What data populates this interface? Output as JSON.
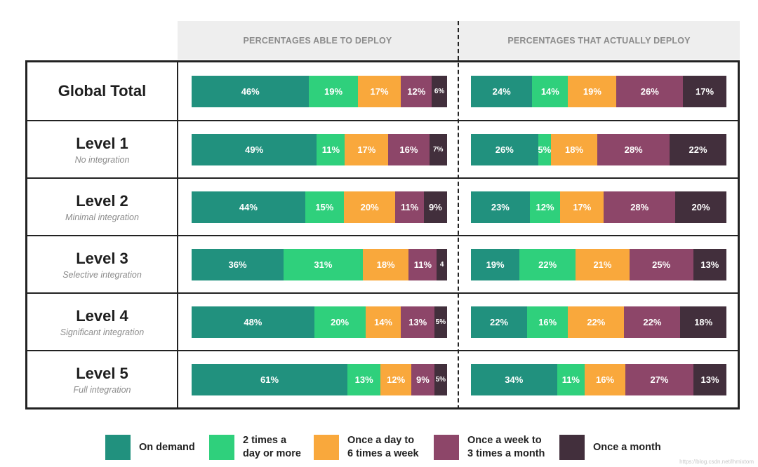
{
  "headers": {
    "left": "PERCENTAGES ABLE TO DEPLOY",
    "right": "PERCENTAGES THAT ACTUALLY DEPLOY"
  },
  "colors": {
    "on_demand": "#21917e",
    "two_times_day": "#2fd07c",
    "once_day": "#f9a83c",
    "once_week": "#8d4669",
    "once_month": "#422f3c"
  },
  "chart_data": {
    "type": "bar",
    "orientation": "horizontal",
    "stacked": true,
    "categories": [
      "Global Total",
      "Level 1",
      "Level 2",
      "Level 3",
      "Level 4",
      "Level 5"
    ],
    "subtitles": [
      "",
      "No integration",
      "Minimal integration",
      "Selective integration",
      "Significant integration",
      "Full integration"
    ],
    "series_names": [
      "On demand",
      "2 times a day or more",
      "Once a day to 6 times a week",
      "Once a week to 3 times a month",
      "Once a month"
    ],
    "panels": [
      {
        "title": "PERCENTAGES ABLE TO DEPLOY",
        "values": [
          [
            46,
            19,
            17,
            12,
            6
          ],
          [
            49,
            11,
            17,
            16,
            7
          ],
          [
            44,
            15,
            20,
            11,
            9
          ],
          [
            36,
            31,
            18,
            11,
            4
          ],
          [
            48,
            20,
            14,
            13,
            5
          ],
          [
            61,
            13,
            12,
            9,
            5
          ]
        ],
        "labels": [
          [
            "46%",
            "19%",
            "17%",
            "12%",
            "6%"
          ],
          [
            "49%",
            "11%",
            "17%",
            "16%",
            "7%"
          ],
          [
            "44%",
            "15%",
            "20%",
            "11%",
            "9%"
          ],
          [
            "36%",
            "31%",
            "18%",
            "11%",
            "4"
          ],
          [
            "48%",
            "20%",
            "14%",
            "13%",
            "5%"
          ],
          [
            "61%",
            "13%",
            "12%",
            "9%",
            "5%"
          ]
        ]
      },
      {
        "title": "PERCENTAGES THAT ACTUALLY DEPLOY",
        "values": [
          [
            24,
            14,
            19,
            26,
            17
          ],
          [
            26,
            5,
            18,
            28,
            22
          ],
          [
            23,
            12,
            17,
            28,
            20
          ],
          [
            19,
            22,
            21,
            25,
            13
          ],
          [
            22,
            16,
            22,
            22,
            18
          ],
          [
            34,
            11,
            16,
            27,
            13
          ]
        ],
        "labels": [
          [
            "24%",
            "14%",
            "19%",
            "26%",
            "17%"
          ],
          [
            "26%",
            "5%",
            "18%",
            "28%",
            "22%"
          ],
          [
            "23%",
            "12%",
            "17%",
            "28%",
            "20%"
          ],
          [
            "19%",
            "22%",
            "21%",
            "25%",
            "13%"
          ],
          [
            "22%",
            "16%",
            "22%",
            "22%",
            "18%"
          ],
          [
            "34%",
            "11%",
            "16%",
            "27%",
            "13%"
          ]
        ]
      }
    ]
  },
  "legend": [
    {
      "key": "on_demand",
      "label": "On demand"
    },
    {
      "key": "two_times_day",
      "label": "2 times a\nday or more"
    },
    {
      "key": "once_day",
      "label": "Once a day to\n6 times a week"
    },
    {
      "key": "once_week",
      "label": "Once a week to\n3 times a month"
    },
    {
      "key": "once_month",
      "label": "Once a month"
    }
  ],
  "watermark": "https://blog.csdn.net/lhmixtom"
}
